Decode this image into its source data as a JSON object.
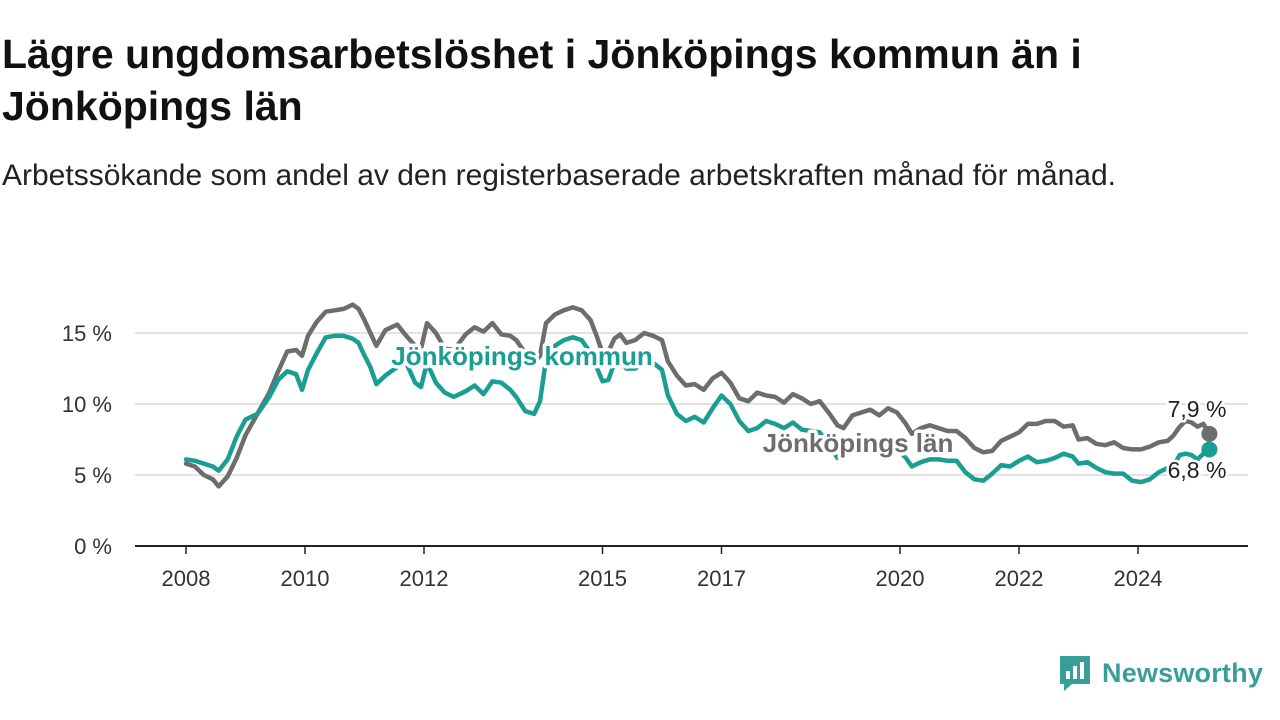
{
  "title": "Lägre ungdomsarbetslöshet i Jönköpings kommun än i Jönköpings län",
  "subtitle": "Arbetssökande som andel av den registerbaserade arbetskraften månad för månad.",
  "brand": {
    "name": "Newsworthy",
    "color": "#3a9e98"
  },
  "chart_data": {
    "type": "line",
    "xlabel": "",
    "ylabel": "",
    "xlim": [
      2007.5,
      2025.3
    ],
    "ylim": [
      0,
      17.5
    ],
    "grid": true,
    "y_ticks": [
      {
        "value": 0,
        "label": "0 %"
      },
      {
        "value": 5,
        "label": "5 %"
      },
      {
        "value": 10,
        "label": "10 %"
      },
      {
        "value": 15,
        "label": "15 %"
      }
    ],
    "x_ticks": [
      {
        "value": 2008,
        "label": "2008"
      },
      {
        "value": 2010,
        "label": "2010"
      },
      {
        "value": 2012,
        "label": "2012"
      },
      {
        "value": 2015,
        "label": "2015"
      },
      {
        "value": 2017,
        "label": "2017"
      },
      {
        "value": 2020,
        "label": "2020"
      },
      {
        "value": 2022,
        "label": "2022"
      },
      {
        "value": 2024,
        "label": "2024"
      }
    ],
    "series": [
      {
        "name": "Jönköpings län",
        "color": "#6d6d6d",
        "end_label": "7,9 %",
        "points": [
          [
            2008.0,
            5.8
          ],
          [
            2008.15,
            5.6
          ],
          [
            2008.3,
            5.0
          ],
          [
            2008.45,
            4.7
          ],
          [
            2008.55,
            4.2
          ],
          [
            2008.7,
            4.9
          ],
          [
            2008.85,
            6.2
          ],
          [
            2009.0,
            7.8
          ],
          [
            2009.2,
            9.3
          ],
          [
            2009.4,
            10.8
          ],
          [
            2009.55,
            12.3
          ],
          [
            2009.7,
            13.7
          ],
          [
            2009.85,
            13.8
          ],
          [
            2009.95,
            13.4
          ],
          [
            2010.05,
            14.8
          ],
          [
            2010.2,
            15.8
          ],
          [
            2010.35,
            16.5
          ],
          [
            2010.5,
            16.6
          ],
          [
            2010.65,
            16.7
          ],
          [
            2010.8,
            17.0
          ],
          [
            2010.9,
            16.7
          ],
          [
            2011.0,
            15.9
          ],
          [
            2011.1,
            15.0
          ],
          [
            2011.2,
            14.1
          ],
          [
            2011.35,
            15.2
          ],
          [
            2011.55,
            15.6
          ],
          [
            2011.7,
            14.8
          ],
          [
            2011.85,
            14.1
          ],
          [
            2011.95,
            13.9
          ],
          [
            2012.05,
            15.7
          ],
          [
            2012.2,
            15.0
          ],
          [
            2012.35,
            13.9
          ],
          [
            2012.5,
            13.8
          ],
          [
            2012.7,
            14.9
          ],
          [
            2012.85,
            15.4
          ],
          [
            2013.0,
            15.1
          ],
          [
            2013.15,
            15.7
          ],
          [
            2013.3,
            14.9
          ],
          [
            2013.45,
            14.8
          ],
          [
            2013.55,
            14.5
          ],
          [
            2013.7,
            13.6
          ],
          [
            2013.85,
            12.8
          ],
          [
            2013.95,
            13.4
          ],
          [
            2014.05,
            15.7
          ],
          [
            2014.2,
            16.3
          ],
          [
            2014.35,
            16.6
          ],
          [
            2014.5,
            16.8
          ],
          [
            2014.65,
            16.6
          ],
          [
            2014.8,
            15.9
          ],
          [
            2014.9,
            14.8
          ],
          [
            2015.0,
            13.6
          ],
          [
            2015.1,
            13.7
          ],
          [
            2015.2,
            14.6
          ],
          [
            2015.3,
            14.9
          ],
          [
            2015.4,
            14.3
          ],
          [
            2015.55,
            14.5
          ],
          [
            2015.7,
            15.0
          ],
          [
            2015.85,
            14.8
          ],
          [
            2016.0,
            14.5
          ],
          [
            2016.1,
            13.0
          ],
          [
            2016.25,
            12.0
          ],
          [
            2016.4,
            11.3
          ],
          [
            2016.55,
            11.4
          ],
          [
            2016.7,
            11.0
          ],
          [
            2016.85,
            11.8
          ],
          [
            2017.0,
            12.2
          ],
          [
            2017.15,
            11.5
          ],
          [
            2017.3,
            10.4
          ],
          [
            2017.45,
            10.2
          ],
          [
            2017.6,
            10.8
          ],
          [
            2017.75,
            10.6
          ],
          [
            2017.9,
            10.5
          ],
          [
            2018.05,
            10.1
          ],
          [
            2018.2,
            10.7
          ],
          [
            2018.35,
            10.4
          ],
          [
            2018.5,
            10.0
          ],
          [
            2018.65,
            10.2
          ],
          [
            2018.8,
            9.4
          ],
          [
            2018.95,
            8.5
          ],
          [
            2019.05,
            8.3
          ],
          [
            2019.2,
            9.2
          ],
          [
            2019.35,
            9.4
          ],
          [
            2019.5,
            9.6
          ],
          [
            2019.65,
            9.2
          ],
          [
            2019.8,
            9.7
          ],
          [
            2019.95,
            9.4
          ],
          [
            2020.1,
            8.6
          ],
          [
            2020.2,
            7.9
          ],
          [
            2020.35,
            8.3
          ],
          [
            2020.5,
            8.5
          ],
          [
            2020.65,
            8.3
          ],
          [
            2020.8,
            8.1
          ],
          [
            2020.95,
            8.1
          ],
          [
            2021.1,
            7.6
          ],
          [
            2021.25,
            6.9
          ],
          [
            2021.4,
            6.6
          ],
          [
            2021.55,
            6.7
          ],
          [
            2021.7,
            7.4
          ],
          [
            2021.85,
            7.7
          ],
          [
            2022.0,
            8.0
          ],
          [
            2022.15,
            8.6
          ],
          [
            2022.3,
            8.6
          ],
          [
            2022.45,
            8.8
          ],
          [
            2022.6,
            8.8
          ],
          [
            2022.75,
            8.4
          ],
          [
            2022.9,
            8.5
          ],
          [
            2023.0,
            7.5
          ],
          [
            2023.15,
            7.6
          ],
          [
            2023.3,
            7.2
          ],
          [
            2023.45,
            7.1
          ],
          [
            2023.6,
            7.3
          ],
          [
            2023.75,
            6.9
          ],
          [
            2023.9,
            6.8
          ],
          [
            2024.05,
            6.8
          ],
          [
            2024.2,
            7.0
          ],
          [
            2024.35,
            7.3
          ],
          [
            2024.5,
            7.4
          ],
          [
            2024.6,
            7.8
          ],
          [
            2024.7,
            8.4
          ],
          [
            2024.8,
            8.8
          ],
          [
            2024.9,
            8.7
          ],
          [
            2025.0,
            8.4
          ],
          [
            2025.1,
            8.6
          ],
          [
            2025.2,
            7.9
          ]
        ]
      },
      {
        "name": "Jönköpings kommun",
        "color": "#1a9e92",
        "end_label": "6,8 %",
        "points": [
          [
            2008.0,
            6.1
          ],
          [
            2008.15,
            6.0
          ],
          [
            2008.3,
            5.8
          ],
          [
            2008.45,
            5.6
          ],
          [
            2008.55,
            5.3
          ],
          [
            2008.7,
            6.1
          ],
          [
            2008.85,
            7.7
          ],
          [
            2009.0,
            8.9
          ],
          [
            2009.2,
            9.3
          ],
          [
            2009.4,
            10.5
          ],
          [
            2009.55,
            11.7
          ],
          [
            2009.7,
            12.3
          ],
          [
            2009.85,
            12.1
          ],
          [
            2009.95,
            11.0
          ],
          [
            2010.05,
            12.4
          ],
          [
            2010.2,
            13.6
          ],
          [
            2010.35,
            14.7
          ],
          [
            2010.5,
            14.8
          ],
          [
            2010.65,
            14.8
          ],
          [
            2010.8,
            14.6
          ],
          [
            2010.9,
            14.3
          ],
          [
            2011.0,
            13.4
          ],
          [
            2011.1,
            12.6
          ],
          [
            2011.2,
            11.4
          ],
          [
            2011.35,
            12.0
          ],
          [
            2011.55,
            12.6
          ],
          [
            2011.7,
            12.9
          ],
          [
            2011.85,
            11.5
          ],
          [
            2011.95,
            11.2
          ],
          [
            2012.05,
            12.9
          ],
          [
            2012.2,
            11.5
          ],
          [
            2012.35,
            10.8
          ],
          [
            2012.5,
            10.5
          ],
          [
            2012.7,
            10.9
          ],
          [
            2012.85,
            11.3
          ],
          [
            2013.0,
            10.7
          ],
          [
            2013.15,
            11.6
          ],
          [
            2013.3,
            11.5
          ],
          [
            2013.45,
            11.0
          ],
          [
            2013.55,
            10.5
          ],
          [
            2013.7,
            9.5
          ],
          [
            2013.85,
            9.3
          ],
          [
            2013.95,
            10.2
          ],
          [
            2014.05,
            13.1
          ],
          [
            2014.2,
            14.1
          ],
          [
            2014.35,
            14.5
          ],
          [
            2014.5,
            14.7
          ],
          [
            2014.65,
            14.5
          ],
          [
            2014.8,
            13.6
          ],
          [
            2014.9,
            12.6
          ],
          [
            2015.0,
            11.6
          ],
          [
            2015.1,
            11.7
          ],
          [
            2015.2,
            12.9
          ],
          [
            2015.3,
            13.1
          ],
          [
            2015.4,
            12.5
          ],
          [
            2015.55,
            12.5
          ],
          [
            2015.7,
            13.0
          ],
          [
            2015.85,
            12.9
          ],
          [
            2016.0,
            12.4
          ],
          [
            2016.1,
            10.6
          ],
          [
            2016.25,
            9.3
          ],
          [
            2016.4,
            8.8
          ],
          [
            2016.55,
            9.1
          ],
          [
            2016.7,
            8.7
          ],
          [
            2016.85,
            9.7
          ],
          [
            2017.0,
            10.6
          ],
          [
            2017.15,
            10.0
          ],
          [
            2017.3,
            8.8
          ],
          [
            2017.45,
            8.1
          ],
          [
            2017.6,
            8.3
          ],
          [
            2017.75,
            8.8
          ],
          [
            2017.9,
            8.6
          ],
          [
            2018.05,
            8.3
          ],
          [
            2018.2,
            8.7
          ],
          [
            2018.35,
            8.2
          ],
          [
            2018.5,
            8.1
          ],
          [
            2018.65,
            8.0
          ],
          [
            2018.8,
            7.1
          ],
          [
            2018.95,
            6.2
          ],
          [
            2019.05,
            6.3
          ],
          [
            2019.2,
            7.0
          ],
          [
            2019.35,
            7.3
          ],
          [
            2019.5,
            7.6
          ],
          [
            2019.65,
            7.3
          ],
          [
            2019.8,
            7.3
          ],
          [
            2019.95,
            6.9
          ],
          [
            2020.1,
            6.2
          ],
          [
            2020.2,
            5.6
          ],
          [
            2020.35,
            5.9
          ],
          [
            2020.5,
            6.1
          ],
          [
            2020.65,
            6.1
          ],
          [
            2020.8,
            6.0
          ],
          [
            2020.95,
            6.0
          ],
          [
            2021.1,
            5.2
          ],
          [
            2021.25,
            4.7
          ],
          [
            2021.4,
            4.6
          ],
          [
            2021.55,
            5.1
          ],
          [
            2021.7,
            5.7
          ],
          [
            2021.85,
            5.6
          ],
          [
            2022.0,
            6.0
          ],
          [
            2022.15,
            6.3
          ],
          [
            2022.3,
            5.9
          ],
          [
            2022.45,
            6.0
          ],
          [
            2022.6,
            6.2
          ],
          [
            2022.75,
            6.5
          ],
          [
            2022.9,
            6.3
          ],
          [
            2023.0,
            5.8
          ],
          [
            2023.15,
            5.9
          ],
          [
            2023.3,
            5.5
          ],
          [
            2023.45,
            5.2
          ],
          [
            2023.6,
            5.1
          ],
          [
            2023.75,
            5.1
          ],
          [
            2023.9,
            4.6
          ],
          [
            2024.05,
            4.5
          ],
          [
            2024.2,
            4.7
          ],
          [
            2024.35,
            5.2
          ],
          [
            2024.5,
            5.5
          ],
          [
            2024.6,
            5.7
          ],
          [
            2024.7,
            6.4
          ],
          [
            2024.8,
            6.5
          ],
          [
            2024.9,
            6.4
          ],
          [
            2025.0,
            6.1
          ],
          [
            2025.1,
            6.5
          ],
          [
            2025.2,
            6.8
          ]
        ]
      }
    ]
  }
}
